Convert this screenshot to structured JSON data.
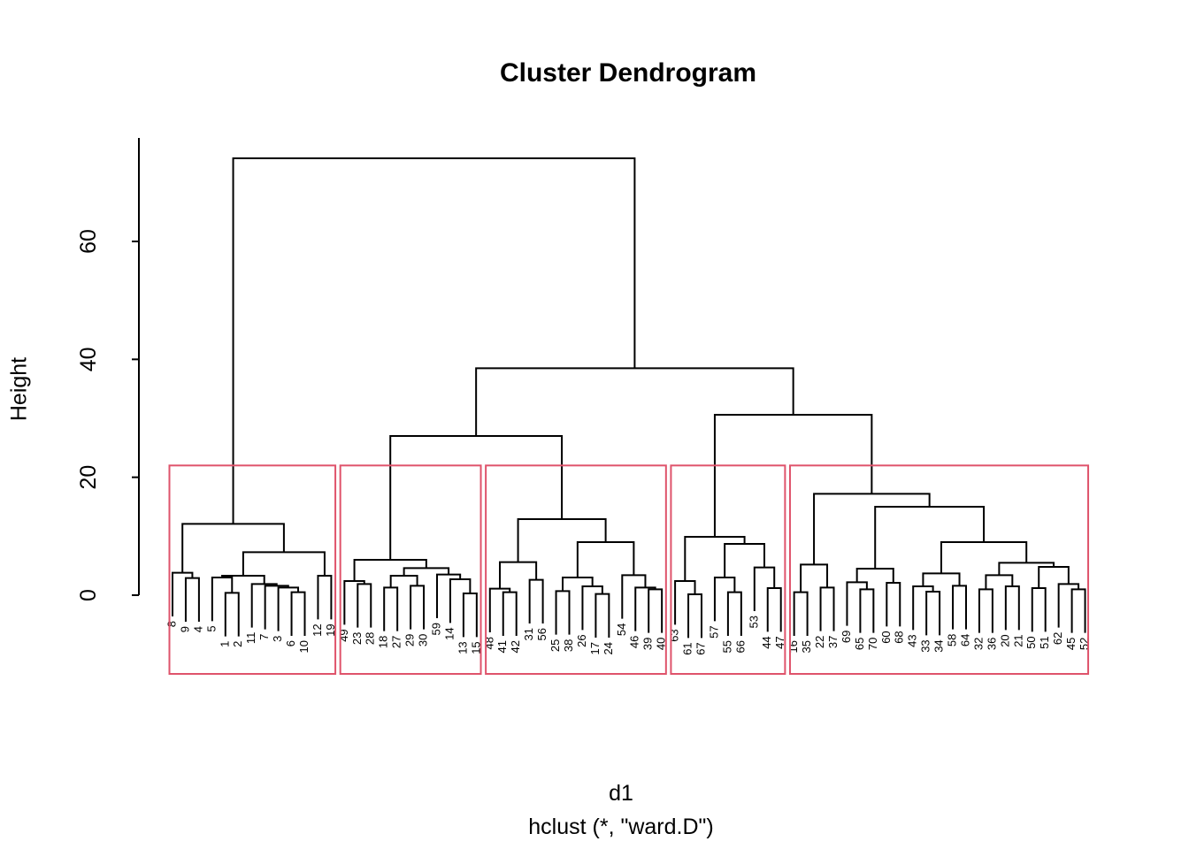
{
  "title": "Cluster Dendrogram",
  "axis": {
    "label": "Height",
    "ticks": [
      0,
      20,
      40,
      60
    ]
  },
  "caption": {
    "xlab": "d1",
    "sub": "hclust (*, \"ward.D\")"
  },
  "colors": {
    "line": "#000000",
    "cluster_box": "#DF536B",
    "background": "#ffffff"
  },
  "chart_data": {
    "type": "dendrogram",
    "title": "Cluster Dendrogram",
    "ylabel": "Height",
    "yticks": [
      0,
      20,
      40,
      60
    ],
    "ylim": [
      0,
      77.5
    ],
    "hang": 7.4,
    "n_leaves": 70,
    "leaf_order": [
      "8",
      "9",
      "4",
      "5",
      "1",
      "2",
      "11",
      "7",
      "3",
      "6",
      "10",
      "12",
      "19",
      "49",
      "23",
      "28",
      "18",
      "27",
      "29",
      "30",
      "59",
      "14",
      "13",
      "15",
      "48",
      "41",
      "42",
      "31",
      "56",
      "25",
      "38",
      "26",
      "17",
      "24",
      "54",
      "46",
      "39",
      "40",
      "63",
      "61",
      "67",
      "57",
      "55",
      "66",
      "53",
      "44",
      "47",
      "16",
      "35",
      "22",
      "37",
      "69",
      "65",
      "70",
      "60",
      "68",
      "43",
      "33",
      "34",
      "58",
      "64",
      "32",
      "36",
      "20",
      "21",
      "50",
      "51",
      "62",
      "45",
      "52"
    ],
    "clusters_k": 5,
    "cluster_leaf_ranges": [
      [
        1,
        13
      ],
      [
        14,
        24
      ],
      [
        25,
        38
      ],
      [
        39,
        47
      ],
      [
        48,
        70
      ]
    ],
    "tree": {
      "h": 74.1,
      "c": [
        {
          "h": 12.1,
          "c": [
            {
              "h": 3.8,
              "c": [
                "8",
                {
                  "h": 2.9,
                  "c": [
                    "9",
                    "4"
                  ]
                }
              ]
            },
            {
              "h": 7.3,
              "c": [
                {
                  "h": 3.3,
                  "c": [
                    {
                      "h": 3.0,
                      "c": [
                        "5",
                        {
                          "h": 0.4,
                          "c": [
                            "1",
                            "2"
                          ]
                        }
                      ]
                    },
                    {
                      "h": 1.9,
                      "c": [
                        "11",
                        {
                          "h": 1.6,
                          "c": [
                            "7",
                            {
                              "h": 1.3,
                              "c": [
                                "3",
                                {
                                  "h": 0.5,
                                  "c": [
                                    "6",
                                    "10"
                                  ]
                                }
                              ]
                            }
                          ]
                        }
                      ]
                    }
                  ]
                },
                {
                  "h": 3.3,
                  "c": [
                    "12",
                    "19"
                  ]
                }
              ]
            }
          ]
        },
        {
          "h": 38.5,
          "c": [
            {
              "h": 27.0,
              "c": [
                {
                  "h": 6.0,
                  "c": [
                    {
                      "h": 2.4,
                      "c": [
                        "49",
                        {
                          "h": 1.9,
                          "c": [
                            "23",
                            "28"
                          ]
                        }
                      ]
                    },
                    {
                      "h": 4.6,
                      "c": [
                        {
                          "h": 3.3,
                          "c": [
                            {
                              "h": 1.3,
                              "c": [
                                "18",
                                "27"
                              ]
                            },
                            {
                              "h": 1.6,
                              "c": [
                                "29",
                                "30"
                              ]
                            }
                          ]
                        },
                        {
                          "h": 3.5,
                          "c": [
                            "59",
                            {
                              "h": 2.7,
                              "c": [
                                "14",
                                {
                                  "h": 0.3,
                                  "c": [
                                    "13",
                                    "15"
                                  ]
                                }
                              ]
                            }
                          ]
                        }
                      ]
                    }
                  ]
                },
                {
                  "h": 12.9,
                  "c": [
                    {
                      "h": 5.6,
                      "c": [
                        {
                          "h": 1.1,
                          "c": [
                            "48",
                            {
                              "h": 0.5,
                              "c": [
                                "41",
                                "42"
                              ]
                            }
                          ]
                        },
                        {
                          "h": 2.6,
                          "c": [
                            "31",
                            "56"
                          ]
                        }
                      ]
                    },
                    {
                      "h": 9.0,
                      "c": [
                        {
                          "h": 3.0,
                          "c": [
                            {
                              "h": 0.7,
                              "c": [
                                "25",
                                "38"
                              ]
                            },
                            {
                              "h": 1.5,
                              "c": [
                                "26",
                                {
                                  "h": 0.2,
                                  "c": [
                                    "17",
                                    "24"
                                  ]
                                }
                              ]
                            }
                          ]
                        },
                        {
                          "h": 3.4,
                          "c": [
                            "54",
                            {
                              "h": 1.3,
                              "c": [
                                "46",
                                {
                                  "h": 1.0,
                                  "c": [
                                    "39",
                                    "40"
                                  ]
                                }
                              ]
                            }
                          ]
                        }
                      ]
                    }
                  ]
                }
              ]
            },
            {
              "h": 30.6,
              "c": [
                {
                  "h": 9.9,
                  "c": [
                    {
                      "h": 2.4,
                      "c": [
                        "63",
                        {
                          "h": 0.15,
                          "c": [
                            "61",
                            "67"
                          ]
                        }
                      ]
                    },
                    {
                      "h": 8.7,
                      "c": [
                        {
                          "h": 3.0,
                          "c": [
                            "57",
                            {
                              "h": 0.5,
                              "c": [
                                "55",
                                "66"
                              ]
                            }
                          ]
                        },
                        {
                          "h": 4.7,
                          "c": [
                            "53",
                            {
                              "h": 1.2,
                              "c": [
                                "44",
                                "47"
                              ]
                            }
                          ]
                        }
                      ]
                    }
                  ]
                },
                {
                  "h": 17.2,
                  "c": [
                    {
                      "h": 5.2,
                      "c": [
                        {
                          "h": 0.5,
                          "c": [
                            "16",
                            "35"
                          ]
                        },
                        {
                          "h": 1.3,
                          "c": [
                            "22",
                            "37"
                          ]
                        }
                      ]
                    },
                    {
                      "h": 15.0,
                      "c": [
                        {
                          "h": 4.5,
                          "c": [
                            {
                              "h": 2.2,
                              "c": [
                                "69",
                                {
                                  "h": 1.0,
                                  "c": [
                                    "65",
                                    "70"
                                  ]
                                }
                              ]
                            },
                            {
                              "h": 2.1,
                              "c": [
                                "60",
                                "68"
                              ]
                            }
                          ]
                        },
                        {
                          "h": 9.0,
                          "c": [
                            {
                              "h": 3.7,
                              "c": [
                                {
                                  "h": 1.5,
                                  "c": [
                                    "43",
                                    {
                                      "h": 0.6,
                                      "c": [
                                        "33",
                                        "34"
                                      ]
                                    }
                                  ]
                                },
                                {
                                  "h": 1.6,
                                  "c": [
                                    "58",
                                    "64"
                                  ]
                                }
                              ]
                            },
                            {
                              "h": 5.5,
                              "c": [
                                {
                                  "h": 3.4,
                                  "c": [
                                    {
                                      "h": 1.0,
                                      "c": [
                                        "32",
                                        "36"
                                      ]
                                    },
                                    {
                                      "h": 1.5,
                                      "c": [
                                        "20",
                                        "21"
                                      ]
                                    }
                                  ]
                                },
                                {
                                  "h": 4.8,
                                  "c": [
                                    {
                                      "h": 1.2,
                                      "c": [
                                        "50",
                                        "51"
                                      ]
                                    },
                                    {
                                      "h": 1.9,
                                      "c": [
                                        "62",
                                        {
                                          "h": 1.0,
                                          "c": [
                                            "45",
                                            "52"
                                          ]
                                        }
                                      ]
                                    }
                                  ]
                                }
                              ]
                            }
                          ]
                        }
                      ]
                    }
                  ]
                }
              ]
            }
          ]
        }
      ]
    }
  }
}
